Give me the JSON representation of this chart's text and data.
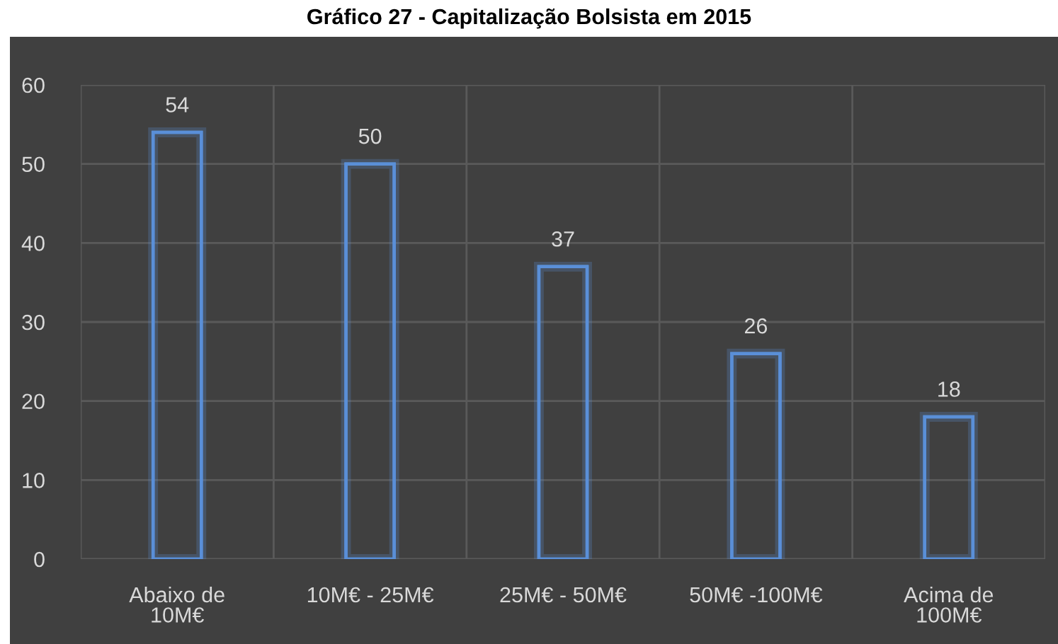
{
  "chart_data": {
    "type": "bar",
    "title": "Gráfico 27 - Capitalização Bolsista em 2015",
    "categories": [
      "Abaixo de\n10M€",
      "10M€ - 25M€",
      "25M€ - 50M€",
      "50M€ -100M€",
      "Acima de\n100M€"
    ],
    "values": [
      54,
      50,
      37,
      26,
      18
    ],
    "color": "#5a8fd8",
    "ylim": [
      0,
      60
    ],
    "yticks": [
      0,
      10,
      20,
      30,
      40,
      50,
      60
    ],
    "grid": true,
    "data_labels": true
  }
}
